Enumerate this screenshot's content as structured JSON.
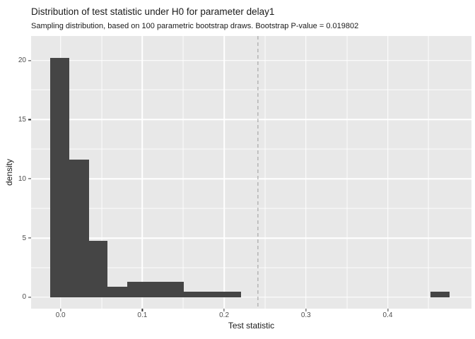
{
  "chart_data": {
    "type": "bar",
    "subtype": "histogram",
    "title": "Distribution of test statistic under H0 for parameter delay1",
    "subtitle": "Sampling distribution, based on 100 parametric bootstrap draws. Bootstrap P-value = 0.019802",
    "xlabel": "Test statistic",
    "ylabel": "density",
    "n_bootstrap_draws": 100,
    "bootstrap_p_value": 0.019802,
    "x_domain": [
      -0.036,
      0.5024
    ],
    "y_domain": [
      -0.954,
      22.06
    ],
    "x_major_ticks": [
      0.0,
      0.1,
      0.2,
      0.3,
      0.4
    ],
    "x_tick_labels": [
      "0.0",
      "0.1",
      "0.2",
      "0.3",
      "0.4"
    ],
    "x_minor_ticks": [
      0.05,
      0.15,
      0.25,
      0.35,
      0.45
    ],
    "y_major_ticks": [
      0,
      5,
      10,
      15,
      20
    ],
    "y_tick_labels": [
      "0",
      "5",
      "10",
      "15",
      "20"
    ],
    "y_minor_ticks": [
      2.5,
      7.5,
      12.5,
      17.5
    ],
    "grid": true,
    "legend": "none",
    "bars": [
      {
        "x0": -0.0127,
        "x1": 0.0106,
        "density": 20.2
      },
      {
        "x0": 0.0106,
        "x1": 0.0345,
        "density": 11.6
      },
      {
        "x0": 0.0345,
        "x1": 0.0576,
        "density": 4.75
      },
      {
        "x0": 0.0576,
        "x1": 0.0815,
        "density": 0.9
      },
      {
        "x0": 0.0815,
        "x1": 0.151,
        "density": 1.3
      },
      {
        "x0": 0.151,
        "x1": 0.221,
        "density": 0.5
      },
      {
        "x0": 0.452,
        "x1": 0.476,
        "density": 0.45
      }
    ],
    "reference_line": {
      "x": 0.241,
      "style": "dashed"
    },
    "colors": {
      "bar_fill": "#454545",
      "panel_bg": "#e8e8e8",
      "gridline": "#ffffff",
      "reference_line": "#9b9b9b",
      "tick_label": "#4d4d4d",
      "tick_mark": "#333333",
      "text": "#1a1a1a",
      "background": "#ffffff"
    }
  }
}
